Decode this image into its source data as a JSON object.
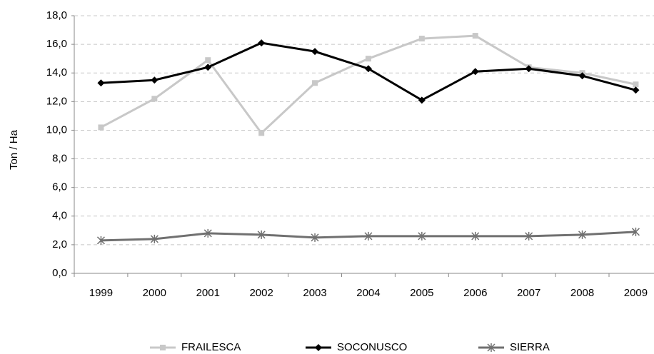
{
  "chart_data": {
    "type": "line",
    "y_label": "Ton / Ha",
    "categories": [
      "1999",
      "2000",
      "2001",
      "2002",
      "2003",
      "2004",
      "2005",
      "2006",
      "2007",
      "2008",
      "2009"
    ],
    "series": [
      {
        "name": "FRAILESCA",
        "color": "#c8c8c8",
        "marker": "square",
        "values": [
          10.2,
          12.2,
          14.9,
          9.8,
          13.3,
          15.0,
          16.4,
          16.6,
          14.4,
          14.0,
          13.2
        ]
      },
      {
        "name": "SOCONUSCO",
        "color": "#000000",
        "marker": "diamond",
        "values": [
          13.3,
          13.5,
          14.4,
          16.1,
          15.5,
          14.3,
          12.1,
          14.1,
          14.3,
          13.8,
          12.8
        ]
      },
      {
        "name": "SIERRA",
        "color": "#707070",
        "marker": "star",
        "values": [
          2.3,
          2.4,
          2.8,
          2.7,
          2.5,
          2.6,
          2.6,
          2.6,
          2.6,
          2.7,
          2.9
        ]
      }
    ],
    "ylim": [
      0,
      18
    ],
    "yticks": [
      {
        "value": 0,
        "label": "0,0"
      },
      {
        "value": 2,
        "label": "2,0"
      },
      {
        "value": 4,
        "label": "4,0"
      },
      {
        "value": 6,
        "label": "6,0"
      },
      {
        "value": 8,
        "label": "8,0"
      },
      {
        "value": 10,
        "label": "10,0"
      },
      {
        "value": 12,
        "label": "12,0"
      },
      {
        "value": 14,
        "label": "14,0"
      },
      {
        "value": 16,
        "label": "16,0"
      },
      {
        "value": 18,
        "label": "18,0"
      }
    ],
    "grid": true,
    "legend": "bottom"
  }
}
